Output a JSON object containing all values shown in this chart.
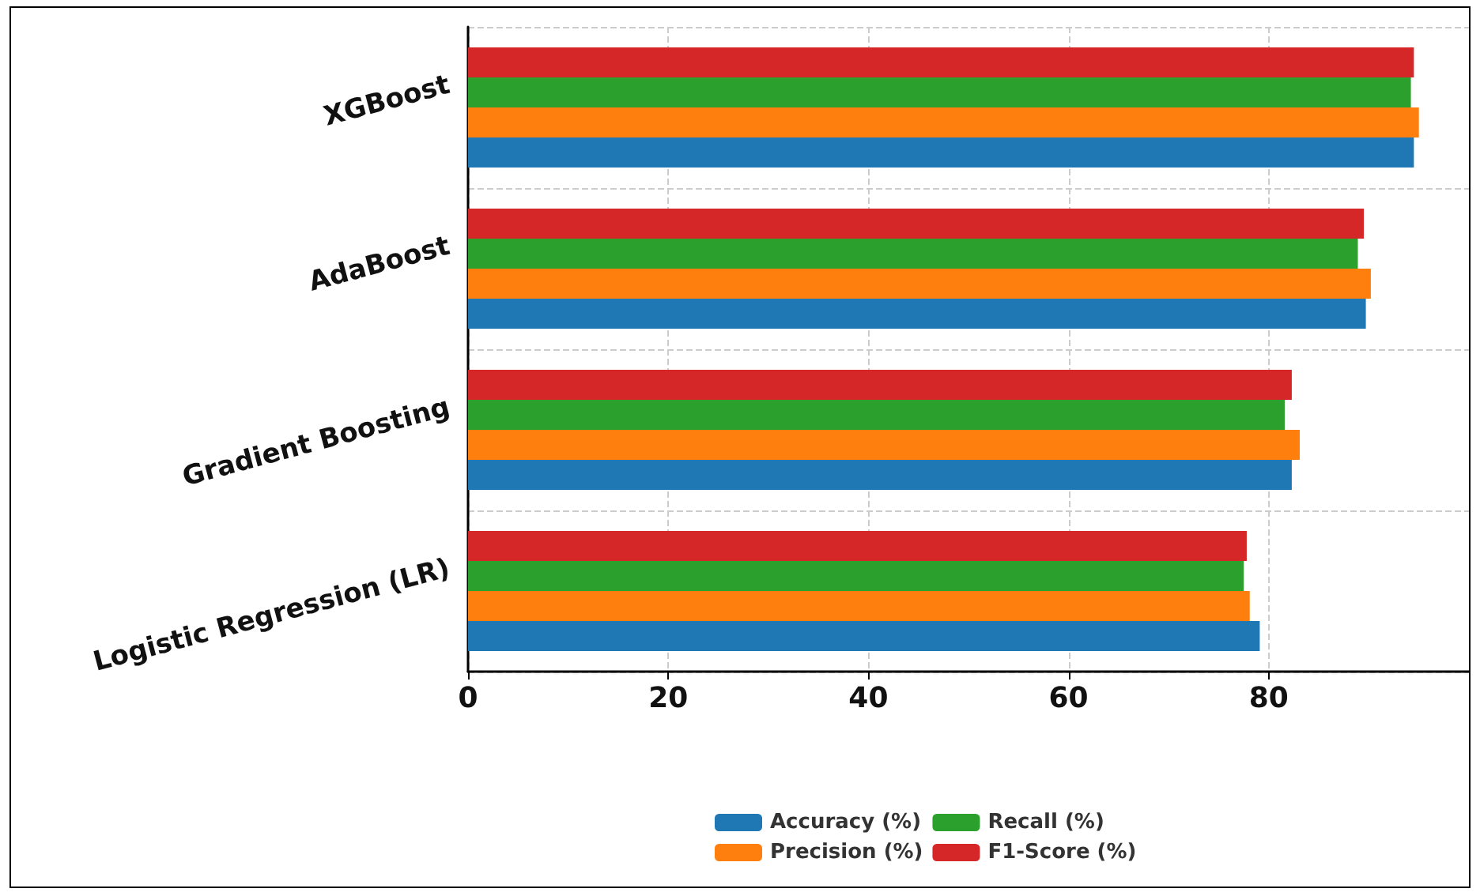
{
  "chart_data": {
    "type": "bar",
    "orientation": "horizontal",
    "categories": [
      "XGBoost",
      "AdaBoost",
      "Gradient Boosting",
      "Logistic Regression (LR)"
    ],
    "series": [
      {
        "name": "Accuracy (%)",
        "color": "#1f77b4",
        "values": [
          94.5,
          89.7,
          82.3,
          79.1
        ]
      },
      {
        "name": "Precision (%)",
        "color": "#ff7f0e",
        "values": [
          95.0,
          90.2,
          83.1,
          78.1
        ]
      },
      {
        "name": "Recall (%)",
        "color": "#2ca02c",
        "values": [
          94.2,
          88.9,
          81.6,
          77.5
        ]
      },
      {
        "name": "F1-Score (%)",
        "color": "#d62728",
        "values": [
          94.5,
          89.5,
          82.3,
          77.8
        ]
      }
    ],
    "xlim": [
      0,
      100
    ],
    "xticks": [
      0,
      20,
      40,
      60,
      80
    ],
    "grid": true,
    "legend": "bottom"
  }
}
